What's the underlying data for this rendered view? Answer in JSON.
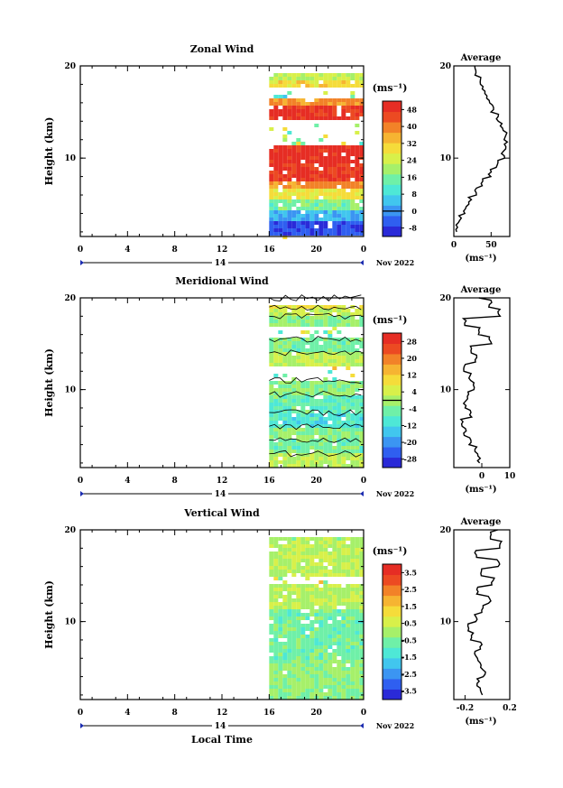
{
  "chart_data": [
    {
      "type": "heatmap",
      "title": "Zonal Wind",
      "ylabel": "Height (km)",
      "xlabel": "",
      "x_ticks": [
        "0",
        "4",
        "8",
        "12",
        "16",
        "20",
        "0"
      ],
      "y_ticks": [
        "10",
        "20"
      ],
      "xlim": [
        0,
        24
      ],
      "ylim": [
        1.5,
        20
      ],
      "day_label": "14",
      "date_label": "Nov 2022",
      "unit_label": "(ms⁻¹)",
      "colorbar_ticks": [
        "48",
        "40",
        "32",
        "24",
        "16",
        "8",
        "0",
        "-8"
      ],
      "colorbar_range": [
        -12,
        52
      ],
      "contour_zero": false,
      "data_start_hour": 16,
      "profile": {
        "title": "Average",
        "xticks": [
          "0",
          "50"
        ],
        "xlim": [
          0,
          75
        ],
        "xunit": "(ms⁻¹)",
        "yticks": [
          "10",
          "20"
        ],
        "points": [
          [
            3,
            2
          ],
          [
            8,
            3
          ],
          [
            15,
            4
          ],
          [
            22,
            5
          ],
          [
            30,
            6
          ],
          [
            38,
            7
          ],
          [
            48,
            8
          ],
          [
            58,
            9
          ],
          [
            66,
            10
          ],
          [
            70,
            11
          ],
          [
            69,
            12
          ],
          [
            64,
            13
          ],
          [
            58,
            14
          ],
          [
            52,
            15
          ],
          [
            46,
            16
          ],
          [
            40,
            17
          ],
          [
            35,
            18
          ],
          [
            30,
            19
          ],
          [
            26,
            20
          ]
        ]
      },
      "layers": [
        {
          "h0": 1.5,
          "h1": 3.0,
          "v": -6
        },
        {
          "h0": 3.0,
          "h1": 4.5,
          "v": 4
        },
        {
          "h0": 4.5,
          "h1": 5.5,
          "v": 16
        },
        {
          "h0": 5.5,
          "h1": 6.5,
          "v": 28
        },
        {
          "h0": 6.5,
          "h1": 7.5,
          "v": 38
        },
        {
          "h0": 7.5,
          "h1": 9.5,
          "v": 48
        },
        {
          "h0": 9.5,
          "h1": 11.5,
          "v": 50
        },
        {
          "h0": 11.5,
          "h1": 14.0,
          "v": null
        },
        {
          "h0": 14.0,
          "h1": 15.5,
          "v": 48
        },
        {
          "h0": 15.5,
          "h1": 16.5,
          "v": 38
        },
        {
          "h0": 16.5,
          "h1": 17.5,
          "v": null
        },
        {
          "h0": 17.5,
          "h1": 18.5,
          "v": 30
        },
        {
          "h0": 18.5,
          "h1": 19.3,
          "v": 22
        },
        {
          "h0": 19.3,
          "h1": 20.0,
          "v": 12
        }
      ]
    },
    {
      "type": "heatmap",
      "title": "Meridional Wind",
      "ylabel": "Height (km)",
      "xlabel": "",
      "x_ticks": [
        "0",
        "4",
        "8",
        "12",
        "16",
        "20",
        "0"
      ],
      "y_ticks": [
        "10",
        "20"
      ],
      "xlim": [
        0,
        24
      ],
      "ylim": [
        1.5,
        20
      ],
      "day_label": "14",
      "date_label": "Nov 2022",
      "unit_label": "(ms⁻¹)",
      "colorbar_ticks": [
        "28",
        "20",
        "12",
        "4",
        "-4",
        "-12",
        "-20",
        "-28"
      ],
      "colorbar_range": [
        -32,
        32
      ],
      "contour_zero": true,
      "data_start_hour": 16,
      "profile": {
        "title": "Average",
        "xticks": [
          "0",
          "10"
        ],
        "xlim": [
          -10,
          10
        ],
        "xunit": "(ms⁻¹)",
        "yticks": [
          "10",
          "20"
        ],
        "points": [
          [
            -1,
            2
          ],
          [
            -2,
            3
          ],
          [
            -4,
            4
          ],
          [
            -6,
            5
          ],
          [
            -7,
            6
          ],
          [
            -4,
            7
          ],
          [
            -6,
            8
          ],
          [
            -5,
            9
          ],
          [
            -3,
            10
          ],
          [
            -4,
            11
          ],
          [
            -6,
            12
          ],
          [
            -2,
            13
          ],
          [
            -4,
            14
          ],
          [
            3,
            15
          ],
          [
            -1,
            16
          ],
          [
            -6,
            17
          ],
          [
            6,
            18
          ],
          [
            3,
            19
          ],
          [
            -1,
            20
          ]
        ]
      },
      "layers": [
        {
          "h0": 1.5,
          "h1": 3.0,
          "v": 2
        },
        {
          "h0": 3.0,
          "h1": 4.5,
          "v": -4
        },
        {
          "h0": 4.5,
          "h1": 6.0,
          "v": -2
        },
        {
          "h0": 6.0,
          "h1": 7.5,
          "v": -10
        },
        {
          "h0": 7.5,
          "h1": 9.5,
          "v": -6
        },
        {
          "h0": 9.5,
          "h1": 11.0,
          "v": -2
        },
        {
          "h0": 11.0,
          "h1": 12.5,
          "v": null
        },
        {
          "h0": 12.5,
          "h1": 14.0,
          "v": 2
        },
        {
          "h0": 14.0,
          "h1": 15.5,
          "v": -4
        },
        {
          "h0": 15.5,
          "h1": 17.0,
          "v": null
        },
        {
          "h0": 17.0,
          "h1": 18.0,
          "v": -2
        },
        {
          "h0": 18.0,
          "h1": 19.0,
          "v": 4
        },
        {
          "h0": 19.0,
          "h1": 20.0,
          "v": 8
        }
      ]
    },
    {
      "type": "heatmap",
      "title": "Vertical Wind",
      "ylabel": "Height (km)",
      "xlabel": "Local Time",
      "x_ticks": [
        "0",
        "4",
        "8",
        "12",
        "16",
        "20",
        "0"
      ],
      "y_ticks": [
        "10",
        "20"
      ],
      "xlim": [
        0,
        24
      ],
      "ylim": [
        1.5,
        20
      ],
      "day_label": "14",
      "date_label": "Nov 2022",
      "unit_label": "(ms⁻¹)",
      "colorbar_ticks": [
        "3.5",
        "2.5",
        "1.5",
        "0.5",
        "-0.5",
        "-1.5",
        "-2.5",
        "-3.5"
      ],
      "colorbar_range": [
        -4,
        4
      ],
      "contour_zero": false,
      "data_start_hour": 16,
      "profile": {
        "title": "Average",
        "xticks": [
          "-0.2",
          "0.2"
        ],
        "xlim": [
          -0.3,
          0.2
        ],
        "xunit": "(ms⁻¹)",
        "yticks": [
          "10",
          "20"
        ],
        "points": [
          [
            -0.05,
            2
          ],
          [
            -0.08,
            3
          ],
          [
            -0.03,
            4
          ],
          [
            -0.07,
            5
          ],
          [
            -0.1,
            6
          ],
          [
            -0.06,
            7
          ],
          [
            -0.14,
            8
          ],
          [
            -0.18,
            9
          ],
          [
            -0.1,
            10
          ],
          [
            -0.05,
            11
          ],
          [
            0.02,
            12
          ],
          [
            -0.08,
            13
          ],
          [
            0.05,
            14
          ],
          [
            -0.05,
            15
          ],
          [
            0.1,
            16
          ],
          [
            -0.1,
            17
          ],
          [
            0.12,
            18
          ],
          [
            0.02,
            19
          ],
          [
            0.1,
            20
          ]
        ]
      },
      "layers": [
        {
          "h0": 1.5,
          "h1": 6.0,
          "v": -0.2
        },
        {
          "h0": 6.0,
          "h1": 11.5,
          "v": -0.6
        },
        {
          "h0": 11.5,
          "h1": 14.0,
          "v": 0.2
        },
        {
          "h0": 14.0,
          "h1": 15.0,
          "v": null
        },
        {
          "h0": 15.0,
          "h1": 18.5,
          "v": 0.3
        },
        {
          "h0": 18.5,
          "h1": 20.0,
          "v": 0.1
        }
      ]
    }
  ]
}
